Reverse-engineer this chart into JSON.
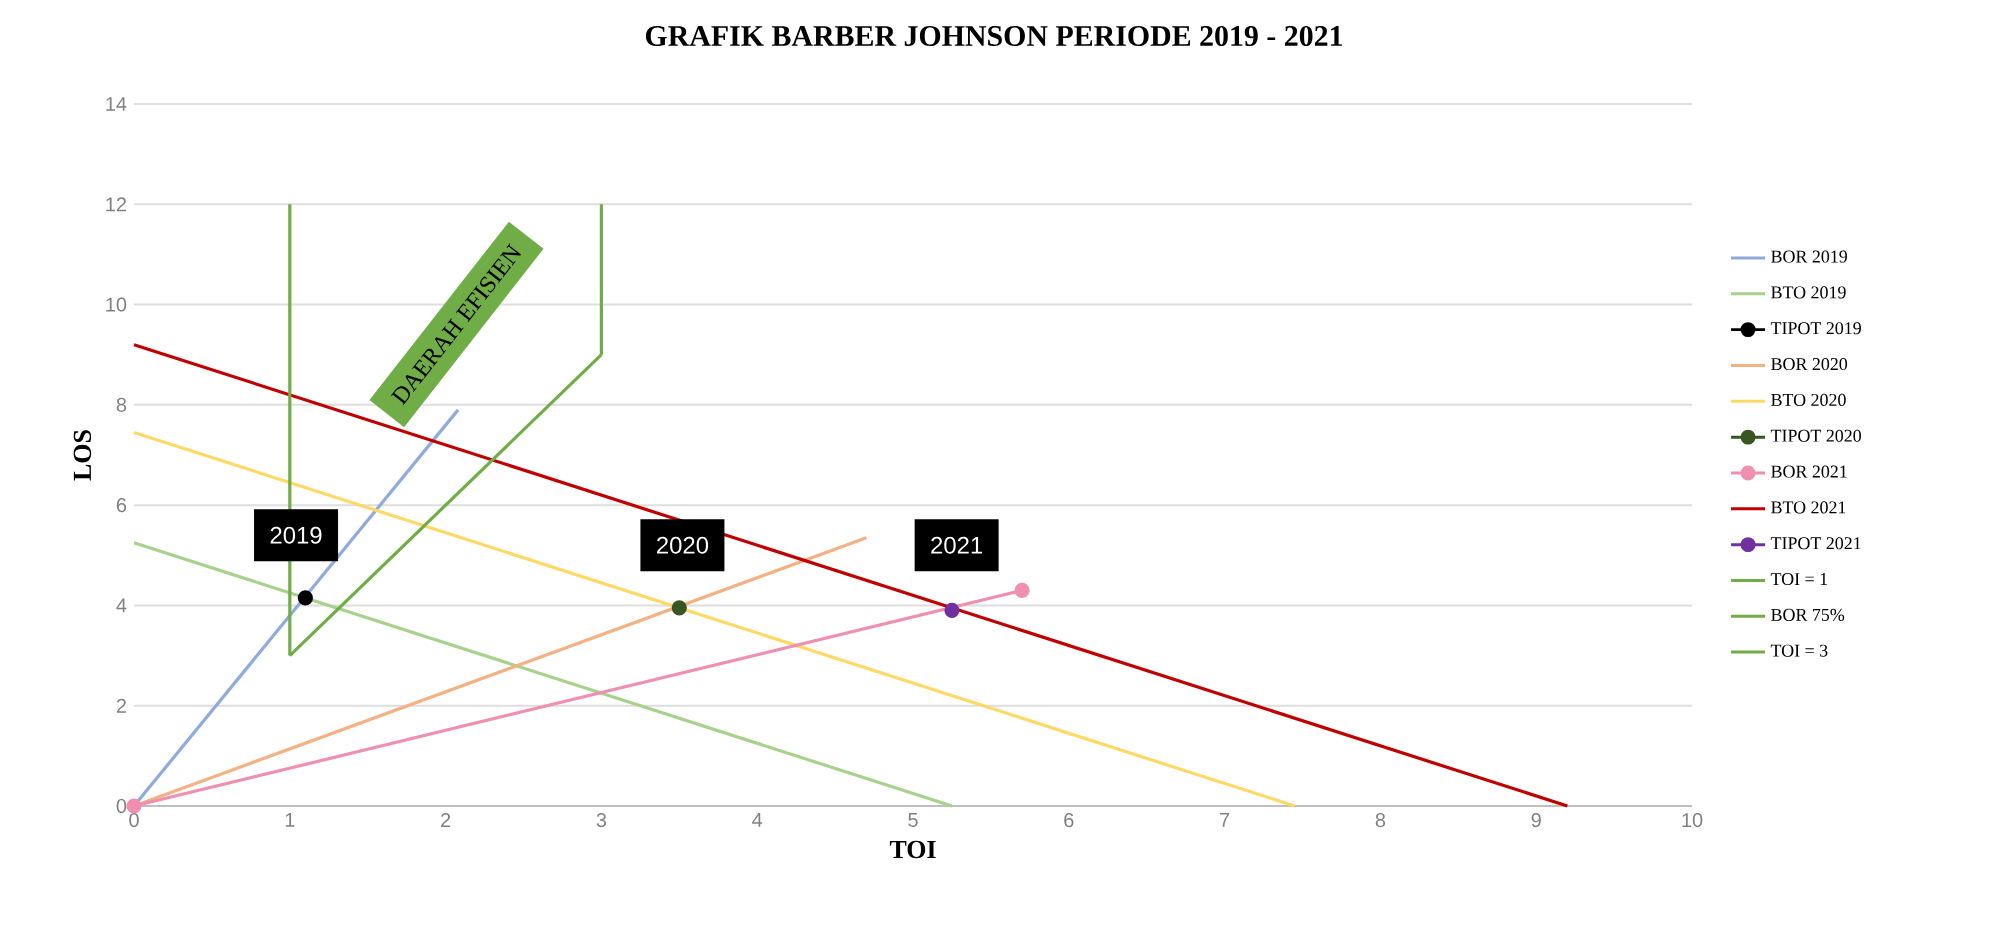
{
  "chart_data": {
    "type": "line",
    "title": "GRAFIK BARBER JOHNSON PERIODE 2019 - 2021",
    "xlabel": "TOI",
    "ylabel": "LOS",
    "xlim": [
      0,
      10
    ],
    "ylim": [
      0,
      14
    ],
    "xticks": [
      0,
      1,
      2,
      3,
      4,
      5,
      6,
      7,
      8,
      9,
      10
    ],
    "yticks": [
      0,
      2,
      4,
      6,
      8,
      10,
      12,
      14
    ],
    "grid": "y",
    "legend": "right",
    "line_style": "solid",
    "series": [
      {
        "name": "BOR 2019",
        "color": "#8faadc",
        "x": [
          0,
          2.08
        ],
        "values": [
          0,
          7.9
        ]
      },
      {
        "name": "BTO 2019",
        "color": "#a9d18e",
        "x": [
          0,
          5.25
        ],
        "values": [
          5.25,
          0
        ]
      },
      {
        "name": "TIPOT 2019",
        "color": "#000000",
        "marker": "circle",
        "x": [
          1.1
        ],
        "values": [
          4.15
        ]
      },
      {
        "name": "BOR 2020",
        "color": "#f4b183",
        "x": [
          0,
          4.7
        ],
        "values": [
          0,
          5.35
        ]
      },
      {
        "name": "BTO 2020",
        "color": "#ffd966",
        "x": [
          0,
          7.45
        ],
        "values": [
          7.45,
          0
        ]
      },
      {
        "name": "TIPOT 2020",
        "color": "#375623",
        "marker": "circle",
        "x": [
          3.5
        ],
        "values": [
          3.95
        ]
      },
      {
        "name": "BOR 2021",
        "color": "#f18fb0",
        "marker": "circle",
        "x": [
          0,
          5.7
        ],
        "values": [
          0,
          4.3
        ]
      },
      {
        "name": "BTO 2021",
        "color": "#c00000",
        "x": [
          0,
          9.2
        ],
        "values": [
          9.2,
          0
        ]
      },
      {
        "name": "TIPOT 2021",
        "color": "#7030a0",
        "marker": "circle",
        "x": [
          5.25
        ],
        "values": [
          3.9
        ]
      },
      {
        "name": "TOI = 1",
        "color": "#70ad47",
        "x": [
          1,
          1
        ],
        "values": [
          12,
          3
        ]
      },
      {
        "name": "BOR 75%",
        "color": "#70ad47",
        "x": [
          1,
          3
        ],
        "values": [
          3,
          9
        ]
      },
      {
        "name": "TOI = 3",
        "color": "#70ad47",
        "x": [
          3,
          3
        ],
        "values": [
          9,
          12
        ]
      }
    ],
    "annotations": [
      "DAERAH EFISIEN",
      {
        "text": "2019",
        "x": 1.04,
        "y": 5.4
      },
      {
        "text": "2020",
        "x": 3.52,
        "y": 5.2
      },
      {
        "text": "2021",
        "x": 5.28,
        "y": 5.2
      }
    ]
  }
}
